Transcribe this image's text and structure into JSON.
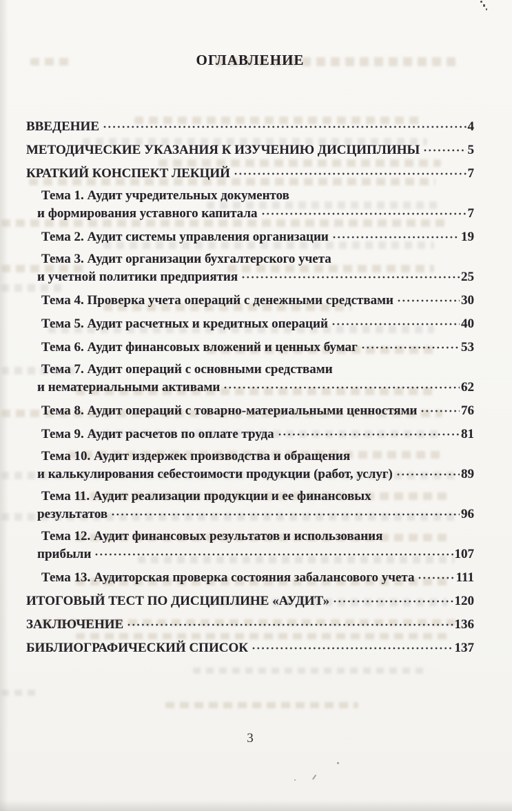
{
  "document": {
    "title": "ОГЛАВЛЕНИЕ",
    "page_number": "3"
  },
  "toc": {
    "entries": [
      {
        "level": "h",
        "lines": [
          "ВВЕДЕНИЕ"
        ],
        "page": "4"
      },
      {
        "level": "h",
        "lines": [
          "МЕТОДИЧЕСКИЕ УКАЗАНИЯ К ИЗУЧЕНИЮ ДИСЦИПЛИНЫ"
        ],
        "page": "5"
      },
      {
        "level": "h",
        "lines": [
          "КРАТКИЙ КОНСПЕКТ ЛЕКЦИЙ"
        ],
        "page": "7"
      },
      {
        "level": "sub",
        "lines": [
          "Тема 1. Аудит учредительных документов",
          "и формирования уставного капитала"
        ],
        "page": "7"
      },
      {
        "level": "sub",
        "lines": [
          "Тема 2. Аудит системы управления организации"
        ],
        "page": "19"
      },
      {
        "level": "sub",
        "lines": [
          "Тема 3. Аудит организации бухгалтерского учета",
          "и учетной политики предприятия"
        ],
        "page": "25"
      },
      {
        "level": "sub",
        "lines": [
          "Тема 4. Проверка учета операций с денежными средствами"
        ],
        "page": "30"
      },
      {
        "level": "sub",
        "lines": [
          "Тема 5. Аудит расчетных и кредитных операций"
        ],
        "page": "40"
      },
      {
        "level": "sub",
        "lines": [
          "Тема 6. Аудит финансовых вложений и ценных бумаг"
        ],
        "page": "53"
      },
      {
        "level": "sub",
        "lines": [
          "Тема 7. Аудит операций с основными средствами",
          "и нематериальными активами"
        ],
        "page": "62"
      },
      {
        "level": "sub",
        "lines": [
          "Тема 8. Аудит операций с товарно-материальными ценностями"
        ],
        "page": "76"
      },
      {
        "level": "sub",
        "lines": [
          "Тема 9. Аудит расчетов по оплате труда"
        ],
        "page": "81"
      },
      {
        "level": "sub",
        "lines": [
          "Тема 10. Аудит издержек производства и обращения",
          "и калькулирования себестоимости продукции (работ, услуг)"
        ],
        "page": "89"
      },
      {
        "level": "sub",
        "lines": [
          "Тема 11. Аудит реализации продукции и ее финансовых",
          "результатов"
        ],
        "page": "96"
      },
      {
        "level": "sub",
        "lines": [
          "Тема 12. Аудит финансовых результатов и использования",
          "прибыли"
        ],
        "page": "107"
      },
      {
        "level": "sub",
        "lines": [
          "Тема 13. Аудиторская проверка состояния забалансового учета"
        ],
        "page": "111"
      },
      {
        "level": "h",
        "lines": [
          "ИТОГОВЫЙ ТЕСТ ПО ДИСЦИПЛИНЕ «АУДИТ»"
        ],
        "page": "120"
      },
      {
        "level": "h",
        "lines": [
          "ЗАКЛЮЧЕНИЕ"
        ],
        "page": "136"
      },
      {
        "level": "h",
        "lines": [
          "БИБЛИОГРАФИЧЕСКИЙ СПИСОК"
        ],
        "page": "137"
      }
    ]
  }
}
